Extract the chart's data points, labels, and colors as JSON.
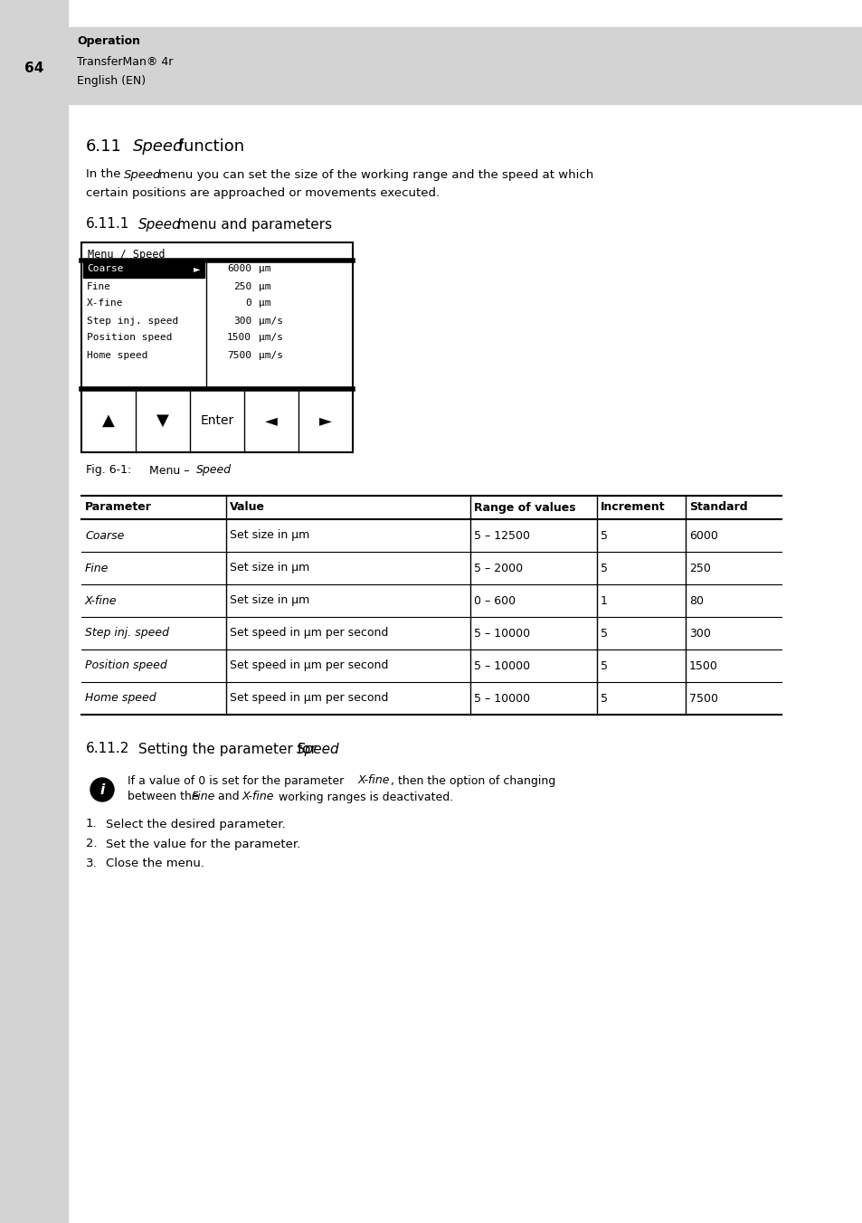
{
  "page_bg": "#ffffff",
  "header_bg": "#d3d3d3",
  "header_num": "64",
  "header_line1": "Operation",
  "header_line2": "TransferMan® 4r",
  "header_line3": "English (EN)",
  "section_611_num": "6.11",
  "section_611_title_italic": "Speed",
  "section_611_title_rest": " function",
  "body_line1_pre": "In the ",
  "body_line1_italic": "Speed",
  "body_line1_post": " menu you can set the size of the working range and the speed at which",
  "body_line2": "certain positions are approached or movements executed.",
  "section_6111_num": "6.11.1",
  "section_6111_title_italic": "Speed",
  "section_6111_title_rest": " menu and parameters",
  "menu_title": "Menu / Speed",
  "menu_items_left": [
    "Coarse",
    "Fine",
    "X-fine",
    "Step inj. speed",
    "Position speed",
    "Home speed"
  ],
  "menu_items_right": [
    "6000",
    "250",
    "0",
    "300",
    "1500",
    "7500"
  ],
  "menu_items_units": [
    "μm",
    "μm",
    "μm",
    "μm/s",
    "μm/s",
    "μm/s"
  ],
  "menu_buttons": [
    "▲",
    "▼",
    "Enter",
    "◄",
    "►"
  ],
  "fig_caption_prefix": "Fig. 6-1:",
  "fig_caption_mid": "Menu – ",
  "fig_caption_italic": "Speed",
  "table_headers": [
    "Parameter",
    "Value",
    "Range of values",
    "Increment",
    "Standard"
  ],
  "table_rows": [
    [
      "Coarse",
      "Set size in μm",
      "5 – 12500",
      "5",
      "6000"
    ],
    [
      "Fine",
      "Set size in μm",
      "5 – 2000",
      "5",
      "250"
    ],
    [
      "X-fine",
      "Set size in μm",
      "0 – 600",
      "1",
      "80"
    ],
    [
      "Step inj. speed",
      "Set speed in μm per second",
      "5 – 10000",
      "5",
      "300"
    ],
    [
      "Position speed",
      "Set speed in μm per second",
      "5 – 10000",
      "5",
      "1500"
    ],
    [
      "Home speed",
      "Set speed in μm per second",
      "5 – 10000",
      "5",
      "7500"
    ]
  ],
  "section_6112_num": "6.11.2",
  "section_6112_title": "Setting the parameter for ",
  "section_6112_title_italic": "Speed",
  "steps": [
    "Select the desired parameter.",
    "Set the value for the parameter.",
    "Close the menu."
  ]
}
